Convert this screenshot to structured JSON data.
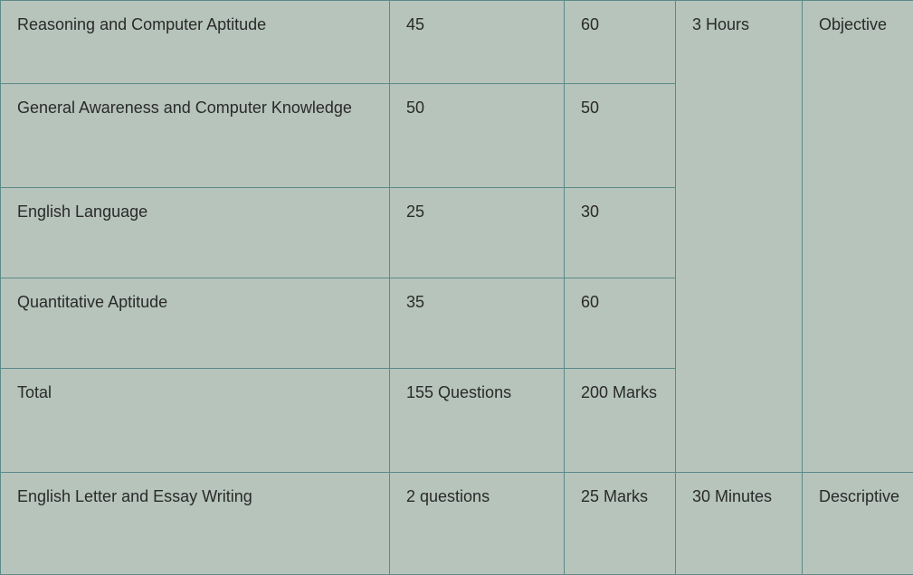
{
  "table": {
    "columns": {
      "col1_width": 430,
      "col2_width": 193,
      "col3_width": 123,
      "col4_width": 140,
      "col5_width": 123
    },
    "background_color": "#b6c4bc",
    "border_color": "#5a8a8a",
    "text_color": "#2a2a2a",
    "font_size": 18,
    "rows": [
      {
        "subject": "Reasoning and Computer Aptitude",
        "questions": "45",
        "marks": "60",
        "duration": "3 Hours",
        "type": "Objective",
        "duration_rowspan": 5,
        "type_rowspan": 5
      },
      {
        "subject": "General Awareness and Computer Knowledge",
        "questions": "50",
        "marks": "50"
      },
      {
        "subject": "English Language",
        "questions": "25",
        "marks": "30"
      },
      {
        "subject": "Quantitative Aptitude",
        "questions": "35",
        "marks": "60"
      },
      {
        "subject": "Total",
        "questions": "155 Questions",
        "marks": "200 Marks"
      },
      {
        "subject": "English Letter and Essay Writing",
        "questions": "2 questions",
        "marks": "25 Marks",
        "duration": "30 Minutes",
        "type": "Descriptive"
      }
    ]
  }
}
